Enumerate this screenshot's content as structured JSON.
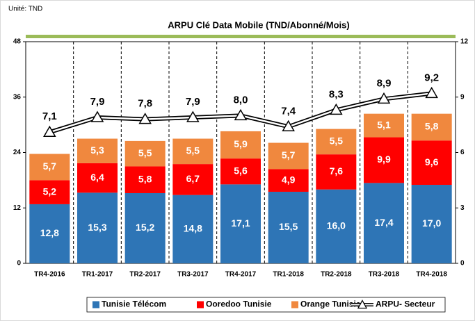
{
  "chart_data": {
    "type": "stacked-bar-line",
    "title": "ARPU Clé Data Mobile (TND/Abonné/Mois)",
    "subtitle": "Unité: TND",
    "categories": [
      "TR4-2016",
      "TR1-2017",
      "TR2-2017",
      "TR3-2017",
      "TR4-2017",
      "TR1-2018",
      "TR2-2018",
      "TR3-2018",
      "TR4-2018"
    ],
    "ylim": [
      0,
      48
    ],
    "yticks": [
      0,
      12,
      24,
      36,
      48
    ],
    "y2lim": [
      0,
      12
    ],
    "y2ticks": [
      0,
      3,
      6,
      9,
      12
    ],
    "series": [
      {
        "name": "Tunisie Télécom",
        "color": "#2e75b6",
        "values": [
          12.8,
          15.3,
          15.2,
          14.8,
          17.1,
          15.5,
          16.0,
          17.4,
          17.0
        ],
        "value_labels": [
          "12,8",
          "15,3",
          "15,2",
          "14,8",
          "17,1",
          "15,5",
          "16,0",
          "17,4",
          "17,0"
        ]
      },
      {
        "name": "Ooredoo Tunisie",
        "color": "#ff0000",
        "values": [
          5.2,
          6.4,
          5.8,
          6.7,
          5.6,
          4.9,
          7.6,
          9.9,
          9.6
        ],
        "value_labels": [
          "5,2",
          "6,4",
          "5,8",
          "6,7",
          "5,6",
          "4,9",
          "7,6",
          "9,9",
          "9,6"
        ]
      },
      {
        "name": "Orange Tunisie",
        "color": "#f0883e",
        "values": [
          5.7,
          5.3,
          5.5,
          5.5,
          5.9,
          5.7,
          5.5,
          5.1,
          5.8
        ],
        "value_labels": [
          "5,7",
          "5,3",
          "5,5",
          "5,5",
          "5,9",
          "5,7",
          "5,5",
          "5,1",
          "5,8"
        ]
      },
      {
        "name": "ARPU- Secteur",
        "color": "#000000",
        "axis": "y2",
        "values": [
          7.1,
          7.9,
          7.8,
          7.9,
          8.0,
          7.4,
          8.3,
          8.9,
          9.2
        ],
        "value_labels": [
          "7,1",
          "7,9",
          "7,8",
          "7,9",
          "8,0",
          "7,4",
          "8,3",
          "8,9",
          "9,2"
        ]
      }
    ]
  }
}
